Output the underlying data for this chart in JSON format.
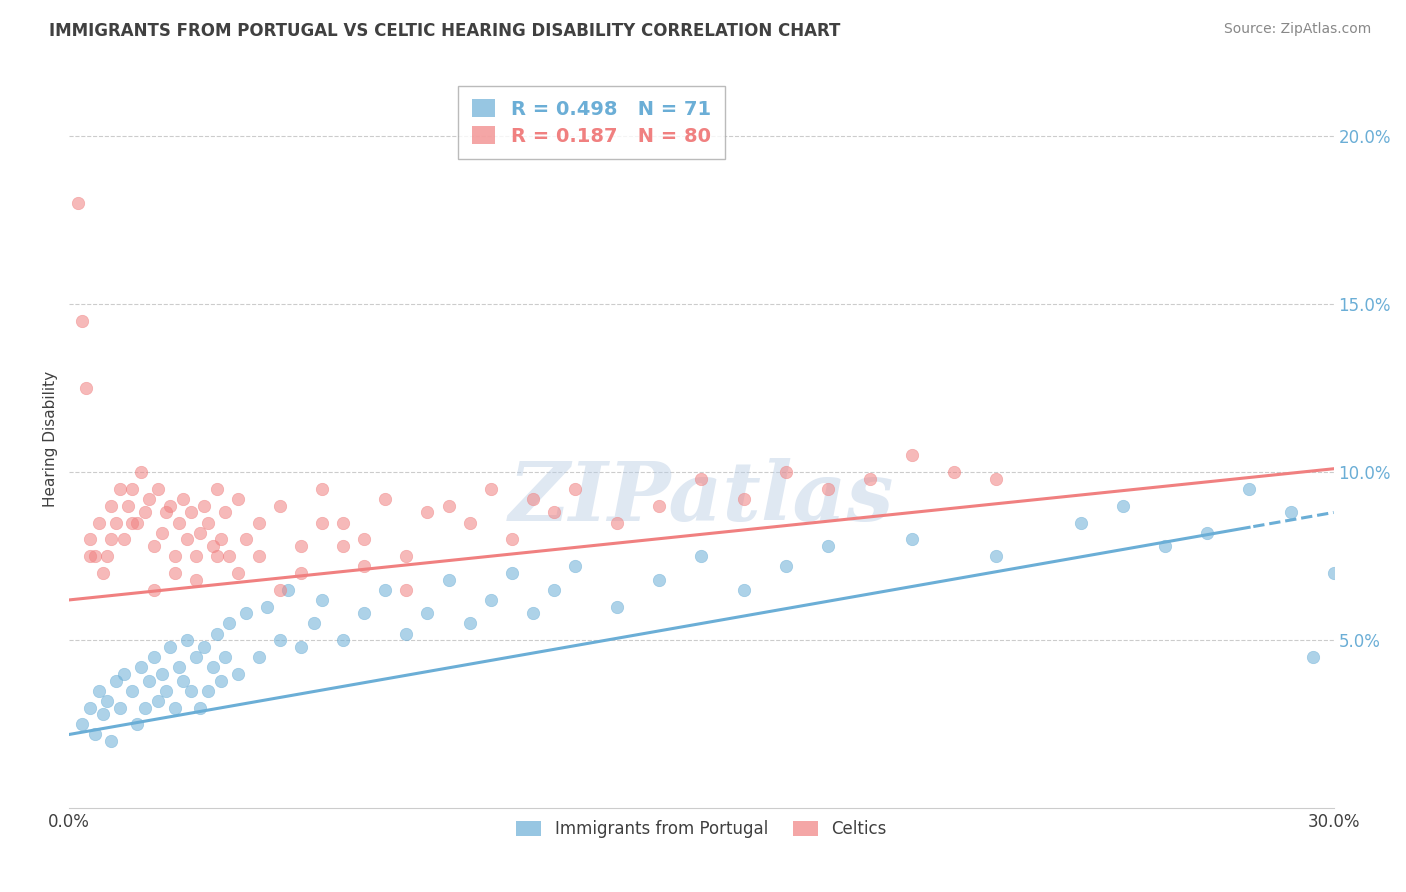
{
  "title": "IMMIGRANTS FROM PORTUGAL VS CELTIC HEARING DISABILITY CORRELATION CHART",
  "source_text": "Source: ZipAtlas.com",
  "ylabel": "Hearing Disability",
  "xlim": [
    0.0,
    30.0
  ],
  "ylim": [
    0.0,
    22.0
  ],
  "x_ticks": [
    0.0,
    5.0,
    10.0,
    15.0,
    20.0,
    25.0,
    30.0
  ],
  "y_ticks_right": [
    5.0,
    10.0,
    15.0,
    20.0
  ],
  "y_tick_labels_right": [
    "5.0%",
    "10.0%",
    "15.0%",
    "20.0%"
  ],
  "blue_color": "#6BAED6",
  "pink_color": "#F08080",
  "legend_R1": "R = 0.498",
  "legend_N1": "N = 71",
  "legend_R2": "R = 0.187",
  "legend_N2": "N = 80",
  "legend_label1": "Immigrants from Portugal",
  "legend_label2": "Celtics",
  "watermark": "ZIPatlas",
  "background_color": "#ffffff",
  "grid_color": "#cccccc",
  "title_color": "#404040",
  "blue_scatter_x": [
    0.3,
    0.5,
    0.6,
    0.7,
    0.8,
    0.9,
    1.0,
    1.1,
    1.2,
    1.3,
    1.5,
    1.6,
    1.7,
    1.8,
    1.9,
    2.0,
    2.1,
    2.2,
    2.3,
    2.4,
    2.5,
    2.6,
    2.7,
    2.8,
    2.9,
    3.0,
    3.1,
    3.2,
    3.3,
    3.4,
    3.5,
    3.6,
    3.7,
    3.8,
    4.0,
    4.2,
    4.5,
    4.7,
    5.0,
    5.2,
    5.5,
    5.8,
    6.0,
    6.5,
    7.0,
    7.5,
    8.0,
    8.5,
    9.0,
    9.5,
    10.0,
    10.5,
    11.0,
    11.5,
    12.0,
    13.0,
    14.0,
    15.0,
    16.0,
    17.0,
    18.0,
    20.0,
    22.0,
    24.0,
    25.0,
    26.0,
    27.0,
    28.0,
    29.0,
    30.0,
    29.5
  ],
  "blue_scatter_y": [
    2.5,
    3.0,
    2.2,
    3.5,
    2.8,
    3.2,
    2.0,
    3.8,
    3.0,
    4.0,
    3.5,
    2.5,
    4.2,
    3.0,
    3.8,
    4.5,
    3.2,
    4.0,
    3.5,
    4.8,
    3.0,
    4.2,
    3.8,
    5.0,
    3.5,
    4.5,
    3.0,
    4.8,
    3.5,
    4.2,
    5.2,
    3.8,
    4.5,
    5.5,
    4.0,
    5.8,
    4.5,
    6.0,
    5.0,
    6.5,
    4.8,
    5.5,
    6.2,
    5.0,
    5.8,
    6.5,
    5.2,
    5.8,
    6.8,
    5.5,
    6.2,
    7.0,
    5.8,
    6.5,
    7.2,
    6.0,
    6.8,
    7.5,
    6.5,
    7.2,
    7.8,
    8.0,
    7.5,
    8.5,
    9.0,
    7.8,
    8.2,
    9.5,
    8.8,
    7.0,
    4.5
  ],
  "pink_scatter_x": [
    0.2,
    0.3,
    0.4,
    0.5,
    0.6,
    0.7,
    0.8,
    0.9,
    1.0,
    1.1,
    1.2,
    1.3,
    1.4,
    1.5,
    1.6,
    1.7,
    1.8,
    1.9,
    2.0,
    2.1,
    2.2,
    2.3,
    2.4,
    2.5,
    2.6,
    2.7,
    2.8,
    2.9,
    3.0,
    3.1,
    3.2,
    3.3,
    3.4,
    3.5,
    3.6,
    3.7,
    3.8,
    4.0,
    4.2,
    4.5,
    5.0,
    5.5,
    6.0,
    6.5,
    7.0,
    7.5,
    8.0,
    8.5,
    9.0,
    9.5,
    10.0,
    10.5,
    11.0,
    11.5,
    12.0,
    13.0,
    14.0,
    15.0,
    16.0,
    17.0,
    18.0,
    19.0,
    20.0,
    21.0,
    22.0,
    0.5,
    1.0,
    1.5,
    2.0,
    2.5,
    3.0,
    3.5,
    4.0,
    4.5,
    5.0,
    5.5,
    6.0,
    6.5,
    7.0,
    8.0
  ],
  "pink_scatter_y": [
    18.0,
    14.5,
    12.5,
    8.0,
    7.5,
    8.5,
    7.0,
    7.5,
    9.0,
    8.5,
    9.5,
    8.0,
    9.0,
    9.5,
    8.5,
    10.0,
    8.8,
    9.2,
    7.8,
    9.5,
    8.2,
    8.8,
    9.0,
    7.5,
    8.5,
    9.2,
    8.0,
    8.8,
    7.5,
    8.2,
    9.0,
    8.5,
    7.8,
    9.5,
    8.0,
    8.8,
    7.5,
    9.2,
    8.0,
    8.5,
    9.0,
    7.8,
    9.5,
    8.5,
    8.0,
    9.2,
    7.5,
    8.8,
    9.0,
    8.5,
    9.5,
    8.0,
    9.2,
    8.8,
    9.5,
    8.5,
    9.0,
    9.8,
    9.2,
    10.0,
    9.5,
    9.8,
    10.5,
    10.0,
    9.8,
    7.5,
    8.0,
    8.5,
    6.5,
    7.0,
    6.8,
    7.5,
    7.0,
    7.5,
    6.5,
    7.0,
    8.5,
    7.8,
    7.2,
    6.5
  ]
}
